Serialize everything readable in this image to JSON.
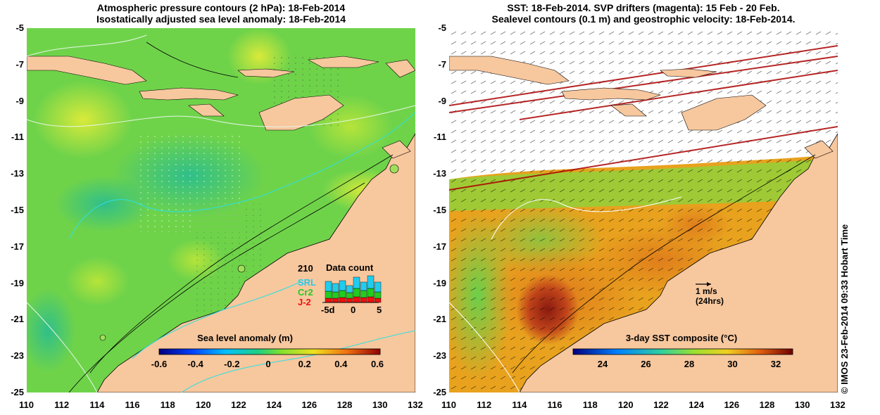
{
  "left_panel": {
    "title_line1": "Atmospheric pressure contours (2 hPa): 18-Feb-2014",
    "title_line2": "Isostatically adjusted sea level anomaly: 18-Feb-2014",
    "colorbar_label": "Sea level anomaly (m)",
    "colorbar_ticks": [
      "-0.6",
      "-0.4",
      "-0.2",
      "0",
      "0.2",
      "0.4",
      "0.6"
    ],
    "data_count": {
      "title": "Data count",
      "max_label": "210",
      "satellites": [
        "SRL",
        "Cr2",
        "J-2"
      ],
      "satellite_colors": [
        "#22ccee",
        "#22cc22",
        "#ee1111"
      ],
      "axis_ticks": [
        "-5d",
        "0",
        "5"
      ]
    }
  },
  "right_panel": {
    "title_line1": "SST: 18-Feb-2014. SVP drifters (magenta): 15 Feb - 20 Feb.",
    "title_line2": "Sealevel contours (0.1 m) and geostrophic velocity: 18-Feb-2014.",
    "colorbar_label": "3-day SST composite (°C)",
    "colorbar_ticks": [
      "24",
      "26",
      "28",
      "30",
      "32"
    ],
    "scale_arrow_label": "1 m/s",
    "scale_arrow_sublabel": "(24hrs)"
  },
  "axes": {
    "x_ticks": [
      "110",
      "112",
      "114",
      "116",
      "118",
      "120",
      "122",
      "124",
      "126",
      "128",
      "130",
      "132"
    ],
    "y_ticks": [
      "-5",
      "-7",
      "-9",
      "-11",
      "-13",
      "-15",
      "-17",
      "-19",
      "-21",
      "-23",
      "-25"
    ]
  },
  "credit": "© IMOS 23-Feb-2014 09:33 Hobart Time",
  "colors": {
    "land": "#f7c79e",
    "sla_background": "#6fd34a",
    "sst_warm": "#e8a21e",
    "sst_hot": "#a8261a"
  }
}
